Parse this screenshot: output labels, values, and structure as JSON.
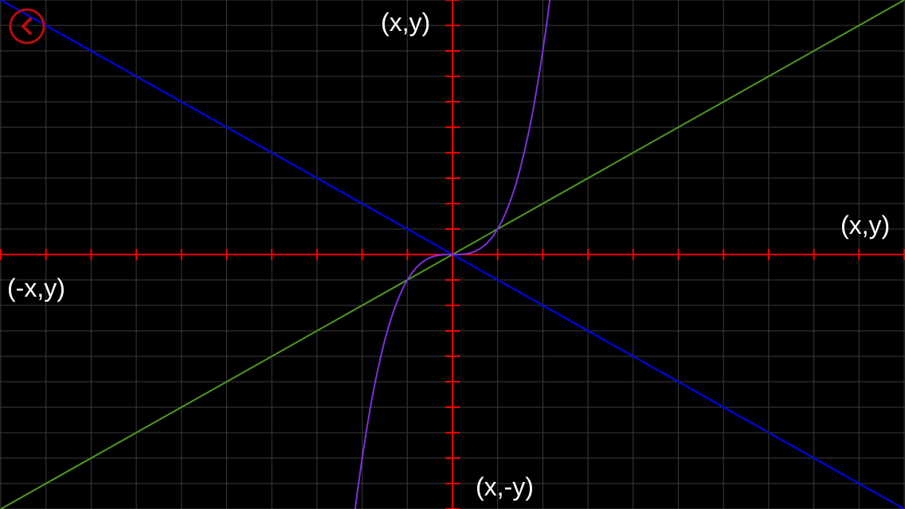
{
  "app": {
    "back_icon": "chevron-left-icon",
    "accent": "#b80d0d"
  },
  "colors": {
    "background": "#000000",
    "grid": "#3b3b3b",
    "axis": "#ff0000",
    "line_green": "#4f9a1e",
    "line_blue": "#0000ff",
    "curve_purple": "#7f2fd8",
    "text": "#ffffff"
  },
  "chart_data": {
    "type": "line",
    "grid": true,
    "xlim": [
      -10,
      10
    ],
    "ylim": [
      -10,
      10
    ],
    "quadrant_labels": {
      "top": "(x,y)",
      "right": "(x,y)",
      "left": "(-x,y)",
      "bottom": "(x,-y)"
    },
    "series": [
      {
        "color": "#4f9a1e",
        "x": [
          -10,
          10
        ],
        "y": [
          -10,
          10
        ]
      },
      {
        "color": "#0000ff",
        "x": [
          -10,
          10
        ],
        "y": [
          10,
          -10
        ]
      },
      {
        "color": "#7f2fd8",
        "x": [
          -2.2,
          -2.1,
          -2.0,
          -1.9,
          -1.8,
          -1.7,
          -1.6,
          -1.5,
          -1.4,
          -1.3,
          -1.2,
          -1.1,
          -1.0,
          -0.9,
          -0.8,
          -0.7,
          -0.6,
          -0.5,
          -0.4,
          -0.3,
          -0.2,
          -0.1,
          0,
          0.1,
          0.2,
          0.3,
          0.4,
          0.5,
          0.6,
          0.7,
          0.8,
          0.9,
          1.0,
          1.1,
          1.2,
          1.3,
          1.4,
          1.5,
          1.6,
          1.7,
          1.8,
          1.9,
          2.0,
          2.1,
          2.2
        ],
        "y": [
          -10.648,
          -9.261,
          -8,
          -6.859,
          -5.832,
          -4.913,
          -4.096,
          -3.375,
          -2.744,
          -2.197,
          -1.728,
          -1.331,
          -1,
          -0.729,
          -0.512,
          -0.343,
          -0.216,
          -0.125,
          -0.064,
          -0.027,
          -0.008,
          -0.001,
          0,
          0.001,
          0.008,
          0.027,
          0.064,
          0.125,
          0.216,
          0.343,
          0.512,
          0.729,
          1,
          1.331,
          1.728,
          2.197,
          2.744,
          3.375,
          4.096,
          4.913,
          5.832,
          6.859,
          8,
          9.261,
          10.648
        ]
      }
    ]
  }
}
